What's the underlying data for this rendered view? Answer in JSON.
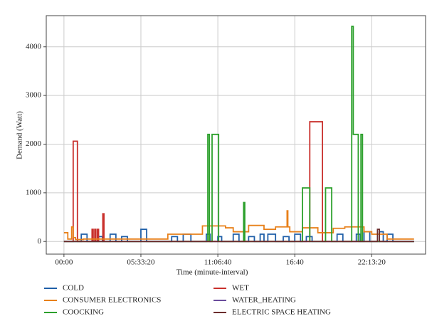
{
  "chart_data": {
    "type": "line",
    "step": "post",
    "x_label": "Time (minute-interval)",
    "y_label": "Demand (Watt)",
    "xlim": [
      -4600,
      94000
    ],
    "ylim": [
      -260,
      4640
    ],
    "xticks": [
      {
        "value": 0,
        "label": "00:00"
      },
      {
        "value": 20000,
        "label": "05:33:20"
      },
      {
        "value": 40000,
        "label": "11:06:40"
      },
      {
        "value": 60000,
        "label": "16:40"
      },
      {
        "value": 80000,
        "label": "22:13:20"
      }
    ],
    "yticks": [
      0,
      1000,
      2000,
      3000,
      4000
    ],
    "grid": true,
    "legend": "below",
    "series": [
      {
        "name": "COLD",
        "color": "#1f5fa8",
        "x": [
          0,
          4500,
          6000,
          9000,
          10000,
          12000,
          13500,
          15000,
          16500,
          20000,
          21500,
          28000,
          29500,
          31000,
          33000,
          37000,
          38000,
          40000,
          41000,
          44000,
          45500,
          48000,
          49500,
          51000,
          52000,
          53000,
          55000,
          57000,
          58500,
          60000,
          61500,
          63000,
          64500,
          71000,
          72500,
          76000,
          77000,
          78000,
          79500,
          82000,
          83000,
          84000,
          85500,
          91000
        ],
        "values": [
          0,
          150,
          0,
          100,
          0,
          150,
          0,
          100,
          0,
          250,
          0,
          100,
          0,
          150,
          0,
          150,
          0,
          100,
          0,
          150,
          0,
          100,
          0,
          150,
          0,
          150,
          0,
          100,
          0,
          150,
          0,
          100,
          0,
          150,
          0,
          150,
          0,
          200,
          0,
          200,
          0,
          150,
          0,
          0
        ]
      },
      {
        "name": "WET",
        "color": "#c9302c",
        "x": [
          0,
          2400,
          3500,
          7300,
          7600,
          8000,
          8300,
          8700,
          9000,
          10100,
          10400,
          63900,
          67200,
          91000
        ],
        "values": [
          0,
          2060,
          0,
          250,
          0,
          250,
          0,
          250,
          0,
          570,
          0,
          2460,
          0,
          0
        ]
      },
      {
        "name": "CONSUMER ELECTRONICS",
        "color": "#e8801a",
        "x": [
          0,
          1000,
          2000,
          2400,
          3000,
          5000,
          25000,
          27000,
          36000,
          42000,
          44000,
          48000,
          52000,
          55000,
          58000,
          58200,
          58700,
          62000,
          66000,
          70000,
          73000,
          78000,
          80000,
          84000,
          91000
        ],
        "values": [
          180,
          50,
          300,
          80,
          40,
          50,
          50,
          150,
          320,
          280,
          200,
          330,
          250,
          300,
          630,
          300,
          200,
          280,
          180,
          270,
          300,
          200,
          150,
          50,
          50
        ]
      },
      {
        "name": "WATER_HEATING",
        "color": "#6a4c9c",
        "x": [
          0,
          91000
        ],
        "values": [
          0,
          0
        ]
      },
      {
        "name": "COOCKING",
        "color": "#2ca02c",
        "x": [
          0,
          37400,
          37800,
          38500,
          40200,
          46700,
          47000,
          62000,
          63900,
          68000,
          69600,
          74800,
          75200,
          76500,
          77200,
          77600,
          91000
        ],
        "values": [
          0,
          2200,
          0,
          2200,
          0,
          800,
          0,
          1100,
          0,
          1100,
          0,
          4420,
          2200,
          0,
          2200,
          0,
          0
        ]
      },
      {
        "name": "ELECTRIC SPACE HEATING",
        "color": "#6b2d2d",
        "x": [
          0,
          81500,
          82000,
          91000
        ],
        "values": [
          0,
          250,
          0,
          0
        ]
      }
    ]
  }
}
